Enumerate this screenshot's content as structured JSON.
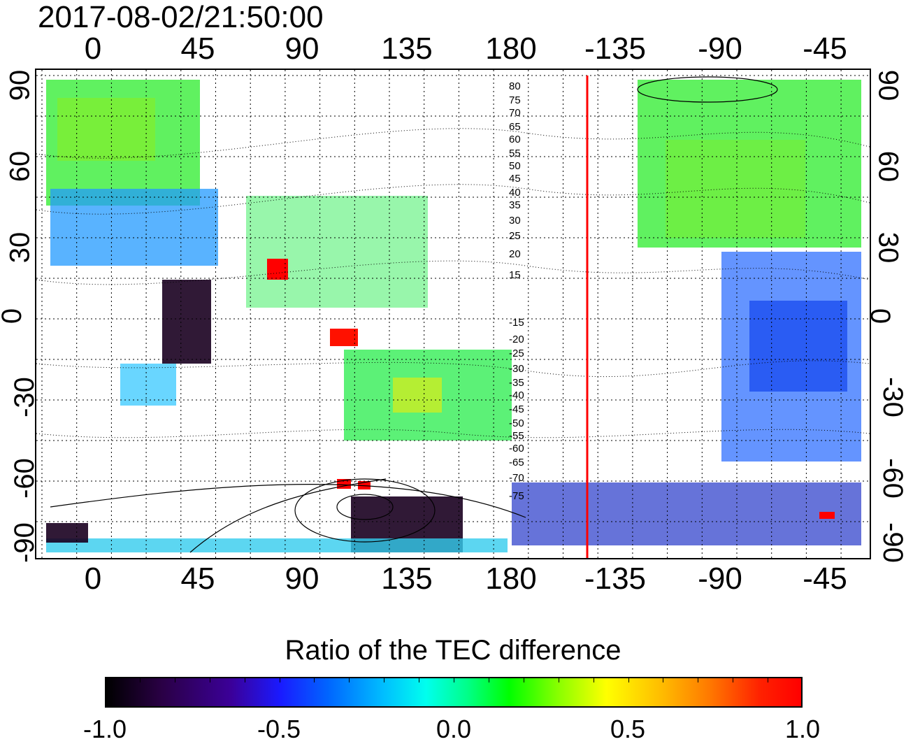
{
  "timestamp": "2017-08-02/21:50:00",
  "lon_labels_top": [
    "0",
    "45",
    "90",
    "135",
    "180",
    "-135",
    "-90",
    "-45"
  ],
  "lon_labels_bottom": [
    "0",
    "45",
    "90",
    "135",
    "180",
    "-135",
    "-90",
    "-45"
  ],
  "lat_labels": [
    "90",
    "60",
    "30",
    "0",
    "-30",
    "-60",
    "-90"
  ],
  "contour_labels": [
    "80",
    "75",
    "70",
    "65",
    "60",
    "55",
    "50",
    "45",
    "40",
    "35",
    "30",
    "25",
    "20",
    "15",
    "-15",
    "-20",
    "-25",
    "-30",
    "-35",
    "-40",
    "-45",
    "-50",
    "-55",
    "-60",
    "-65",
    "-70",
    "-75"
  ],
  "colorbar": {
    "title": "Ratio of the TEC difference",
    "ticks": [
      "-1.0",
      "-0.5",
      "0.0",
      "0.5",
      "1.0"
    ],
    "min": -1.0,
    "max": 1.0
  },
  "colors": {
    "terminator_line": "#ff0000",
    "high_positive": "#ff0000",
    "negative_strong": "#1a0020"
  }
}
